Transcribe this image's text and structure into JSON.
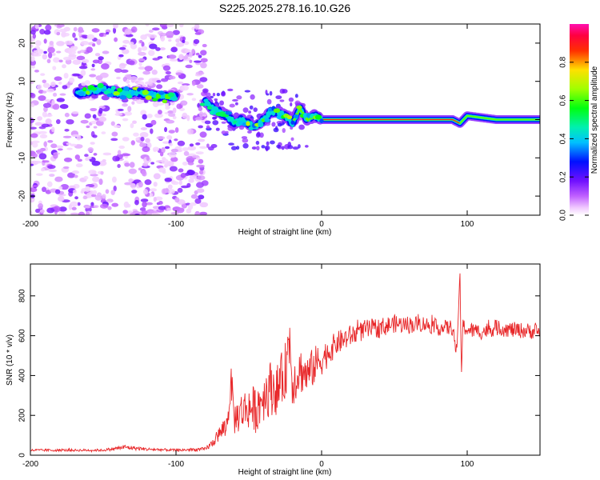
{
  "title": "S225.2025.278.16.10.G26",
  "chart_data": [
    {
      "type": "heatmap",
      "name": "spectrogram",
      "xlabel": "Height of straight line (km)",
      "ylabel": "Frequency (Hz)",
      "xlim": [
        -200,
        150
      ],
      "ylim": [
        -25,
        25
      ],
      "xticks": [
        -200,
        -100,
        0,
        100
      ],
      "xtick_labels": [
        "-200",
        "-100",
        "0",
        "100"
      ],
      "yticks": [
        -20,
        -10,
        0,
        10,
        20
      ],
      "ytick_labels": [
        "-20",
        "-10",
        "0",
        "10",
        "20"
      ],
      "colorbar": {
        "label": "Normalized spectral amplitude",
        "range": [
          0,
          1
        ],
        "ticks": [
          0.0,
          0.2,
          0.4,
          0.6,
          0.8
        ],
        "tick_labels": [
          "0.0",
          "0.2",
          "0.4",
          "0.6",
          "0.8"
        ],
        "colormap": "rainbow (white-purple-blue-cyan-green-yellow-red-magenta)"
      },
      "ridge": {
        "description": "dominant frequency trace",
        "x": [
          -165,
          -150,
          -140,
          -125,
          -110,
          -100,
          -90,
          -80,
          -75,
          -70,
          -65,
          -60,
          -55,
          -50,
          -45,
          -40,
          -35,
          -30,
          -25,
          -20,
          -15,
          -10,
          -5,
          0,
          10,
          30,
          60,
          80,
          90,
          95,
          100,
          120,
          150
        ],
        "y": [
          7,
          8,
          7,
          7,
          6,
          6,
          6,
          5,
          3,
          2,
          1,
          -1,
          0,
          -1,
          -2,
          0,
          2,
          2,
          1,
          -1,
          3,
          0,
          1,
          0,
          0,
          0,
          0,
          0,
          0,
          -1,
          1,
          0,
          0
        ]
      },
      "noise_region_x": [
        -200,
        -80
      ]
    },
    {
      "type": "line",
      "name": "snr",
      "xlabel": "Height of straight line (km)",
      "ylabel": "SNR (10 * v/v)",
      "xlim": [
        -200,
        150
      ],
      "ylim": [
        0,
        960
      ],
      "xticks": [
        -200,
        -100,
        0,
        100
      ],
      "xtick_labels": [
        "-200",
        "-100",
        "0",
        "100"
      ],
      "yticks": [
        0,
        200,
        400,
        600,
        800
      ],
      "ytick_labels": [
        "0",
        "200",
        "400",
        "600",
        "800"
      ],
      "color": "#e8282a",
      "x": [
        -200,
        -150,
        -135,
        -120,
        -100,
        -80,
        -75,
        -70,
        -65,
        -62,
        -60,
        -55,
        -50,
        -45,
        -40,
        -35,
        -30,
        -25,
        -22,
        -20,
        -15,
        -10,
        -5,
        0,
        10,
        20,
        30,
        40,
        50,
        60,
        70,
        80,
        90,
        93,
        95,
        96,
        97,
        100,
        110,
        120,
        130,
        140,
        150
      ],
      "y": [
        25,
        25,
        40,
        30,
        25,
        30,
        60,
        110,
        150,
        370,
        180,
        220,
        240,
        230,
        300,
        340,
        330,
        420,
        590,
        360,
        430,
        400,
        450,
        480,
        560,
        600,
        630,
        640,
        660,
        655,
        660,
        640,
        640,
        500,
        940,
        390,
        650,
        630,
        620,
        640,
        630,
        625,
        620
      ],
      "noise_amplitude": [
        6,
        6,
        12,
        8,
        6,
        10,
        20,
        40,
        60,
        80,
        80,
        100,
        110,
        120,
        130,
        140,
        130,
        150,
        150,
        120,
        120,
        100,
        100,
        80,
        60,
        55,
        50,
        50,
        45,
        45,
        40,
        40,
        40,
        40,
        0,
        0,
        40,
        40,
        40,
        40,
        40,
        40,
        40
      ]
    }
  ]
}
